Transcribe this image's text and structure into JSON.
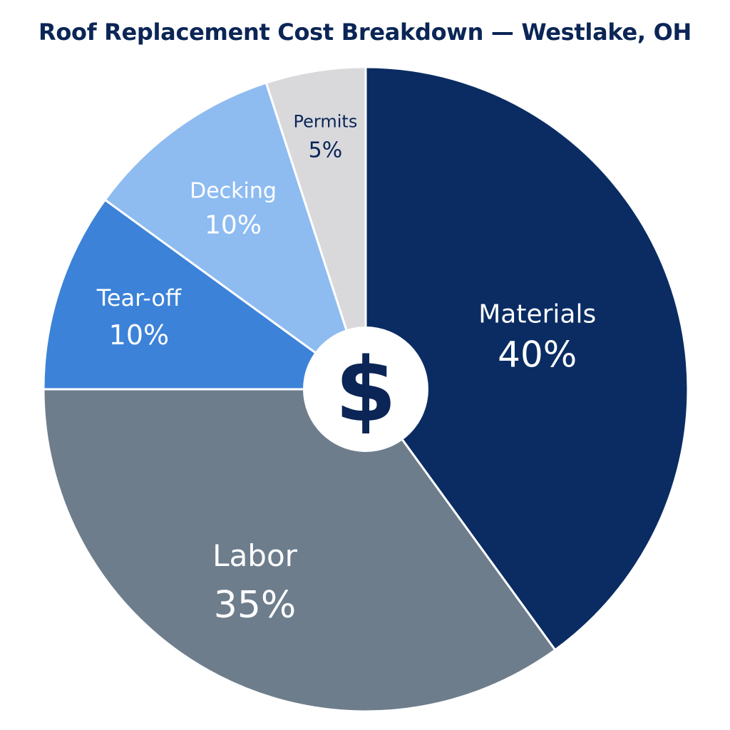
{
  "chart_data": {
    "type": "pie",
    "title": "Roof Replacement Cost Breakdown — Westlake, OH",
    "center_symbol": "$",
    "center_symbol_color": "#0b2556",
    "categories": [
      "Materials",
      "Labor",
      "Tear-off",
      "Decking",
      "Permits"
    ],
    "values": [
      40,
      35,
      10,
      10,
      5
    ],
    "value_labels": [
      "40%",
      "35%",
      "10%",
      "10%",
      "5%"
    ],
    "slices": [
      {
        "label": "Materials",
        "value": 40,
        "value_label": "40%",
        "color": "#0a2c63",
        "label_color": "#ffffff"
      },
      {
        "label": "Labor",
        "value": 35,
        "value_label": "35%",
        "color": "#6d7d8c",
        "label_color": "#ffffff"
      },
      {
        "label": "Tear-off",
        "value": 10,
        "value_label": "10%",
        "color": "#3c82d8",
        "label_color": "#ffffff"
      },
      {
        "label": "Decking",
        "value": 10,
        "value_label": "10%",
        "color": "#8ebcf1",
        "label_color": "#ffffff"
      },
      {
        "label": "Permits",
        "value": 5,
        "value_label": "5%",
        "color": "#d9d9dc",
        "label_color": "#0b2556"
      }
    ],
    "legend": "none",
    "start_angle": "12 o'clock",
    "direction": "clockwise"
  }
}
